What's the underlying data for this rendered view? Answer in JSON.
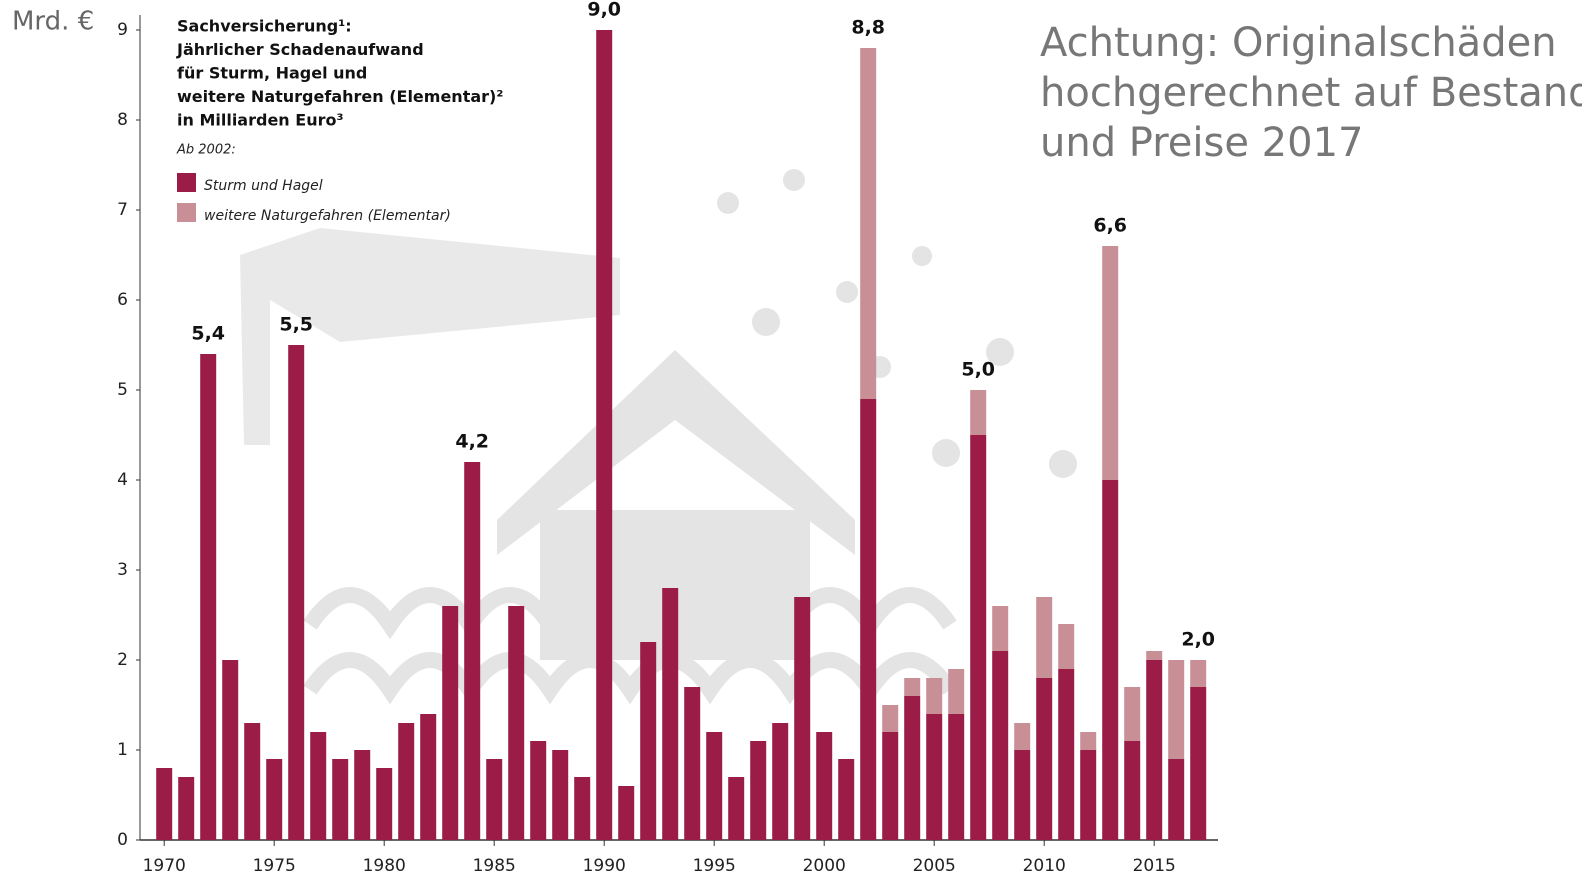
{
  "chart_data": {
    "type": "stacked_bar",
    "y_label": "Mrd. €",
    "title_lines": [
      "Sachversicherung¹:",
      "Jährlicher Schadenaufwand",
      "für Sturm, Hagel und",
      "weitere Naturgefahren (Elementar)²",
      "in Milliarden Euro³"
    ],
    "subtitle": "Ab 2002:",
    "note_lines": [
      "Achtung: Originalschäden",
      "hochgerechnet auf Bestand",
      "und Preise 2017"
    ],
    "x": [
      1970,
      1971,
      1972,
      1973,
      1974,
      1975,
      1976,
      1977,
      1978,
      1979,
      1980,
      1981,
      1982,
      1983,
      1984,
      1985,
      1986,
      1987,
      1988,
      1989,
      1990,
      1991,
      1992,
      1993,
      1994,
      1995,
      1996,
      1997,
      1998,
      1999,
      2000,
      2001,
      2002,
      2003,
      2004,
      2005,
      2006,
      2007,
      2008,
      2009,
      2010,
      2011,
      2012,
      2013,
      2014,
      2015,
      2016,
      2017
    ],
    "series": [
      {
        "name": "Sturm und Hagel",
        "color": "#9b1d47",
        "values": [
          0.8,
          0.7,
          5.4,
          2.0,
          1.3,
          0.9,
          5.5,
          1.2,
          0.9,
          1.0,
          0.8,
          1.3,
          1.4,
          2.6,
          4.2,
          0.9,
          2.6,
          1.1,
          1.0,
          0.7,
          9.0,
          0.6,
          2.2,
          2.8,
          1.7,
          1.2,
          0.7,
          1.1,
          1.3,
          2.7,
          1.2,
          0.9,
          4.9,
          1.2,
          1.6,
          1.4,
          1.4,
          4.5,
          2.1,
          1.0,
          1.8,
          1.9,
          1.0,
          4.0,
          1.1,
          2.0,
          0.9,
          1.7
        ]
      },
      {
        "name": "weitere Naturgefahren (Elementar)",
        "color": "#c98f96",
        "values": [
          null,
          null,
          null,
          null,
          null,
          null,
          null,
          null,
          null,
          null,
          null,
          null,
          null,
          null,
          null,
          null,
          null,
          null,
          null,
          null,
          null,
          null,
          null,
          null,
          null,
          null,
          null,
          null,
          null,
          null,
          null,
          null,
          3.9,
          0.3,
          0.2,
          0.4,
          0.5,
          0.5,
          0.5,
          0.3,
          0.9,
          0.5,
          0.2,
          2.6,
          0.6,
          0.1,
          1.1,
          0.3
        ]
      }
    ],
    "annotations": [
      {
        "x": 1972,
        "value": 5.4,
        "label": "5,4"
      },
      {
        "x": 1976,
        "value": 5.5,
        "label": "5,5"
      },
      {
        "x": 1984,
        "value": 4.2,
        "label": "4,2"
      },
      {
        "x": 1990,
        "value": 9.0,
        "label": "9,0"
      },
      {
        "x": 2002,
        "value": 8.8,
        "label": "8,8"
      },
      {
        "x": 2007,
        "value": 5.0,
        "label": "5,0"
      },
      {
        "x": 2013,
        "value": 6.6,
        "label": "6,6"
      },
      {
        "x": 2017,
        "value": 2.0,
        "label": "2,0"
      }
    ],
    "xlim": [
      1968.9,
      2017.9
    ],
    "xticks": [
      1970,
      1975,
      1980,
      1985,
      1990,
      1995,
      2000,
      2005,
      2010,
      2015
    ],
    "ylim": [
      0,
      9
    ],
    "yticks": [
      0,
      1,
      2,
      3,
      4,
      5,
      6,
      7,
      8,
      9
    ]
  }
}
